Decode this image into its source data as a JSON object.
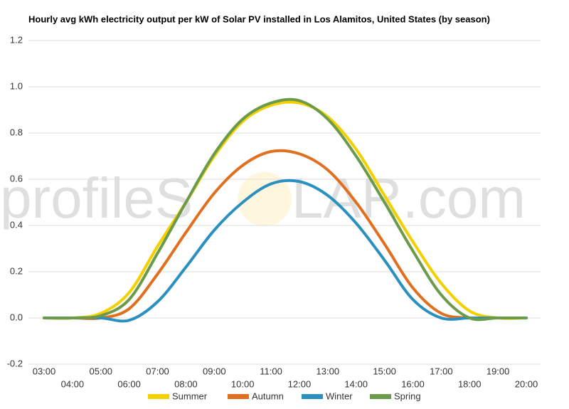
{
  "chart_data": {
    "type": "line",
    "title": "Hourly avg kWh electricity output per kW of Solar PV installed in Los Alamitos, United States (by season)",
    "watermark": [
      "profileS",
      "LAR.com"
    ],
    "categories": [
      "03:00",
      "04:00",
      "05:00",
      "06:00",
      "07:00",
      "08:00",
      "09:00",
      "10:00",
      "11:00",
      "12:00",
      "13:00",
      "14:00",
      "15:00",
      "16:00",
      "17:00",
      "18:00",
      "19:00",
      "20:00"
    ],
    "series": [
      {
        "name": "Summer",
        "color": "#f5d000",
        "values": [
          0,
          0,
          0.02,
          0.11,
          0.31,
          0.5,
          0.7,
          0.85,
          0.92,
          0.93,
          0.87,
          0.73,
          0.53,
          0.33,
          0.15,
          0.03,
          0,
          0
        ]
      },
      {
        "name": "Autumn",
        "color": "#e07020",
        "values": [
          0,
          0,
          0,
          0.04,
          0.19,
          0.37,
          0.54,
          0.66,
          0.72,
          0.71,
          0.64,
          0.5,
          0.32,
          0.13,
          0.02,
          0,
          0,
          0
        ]
      },
      {
        "name": "Winter",
        "color": "#2a90c0",
        "values": [
          0,
          0,
          0,
          -0.01,
          0.07,
          0.22,
          0.38,
          0.5,
          0.58,
          0.59,
          0.53,
          0.41,
          0.25,
          0.08,
          0,
          0,
          0,
          0
        ]
      },
      {
        "name": "Spring",
        "color": "#6a9a4a",
        "values": [
          0,
          0,
          0.01,
          0.08,
          0.28,
          0.5,
          0.71,
          0.86,
          0.93,
          0.94,
          0.86,
          0.7,
          0.5,
          0.29,
          0.1,
          0,
          0,
          0
        ]
      }
    ],
    "ylim": [
      -0.2,
      1.2
    ],
    "yticks": [
      -0.2,
      {
        "value": 0,
        "label": "0.0"
      },
      0.2,
      0.4,
      0.6,
      0.8,
      {
        "value": 1,
        "label": "1.0"
      },
      1.2
    ],
    "grid": true,
    "legend": "bottom"
  }
}
